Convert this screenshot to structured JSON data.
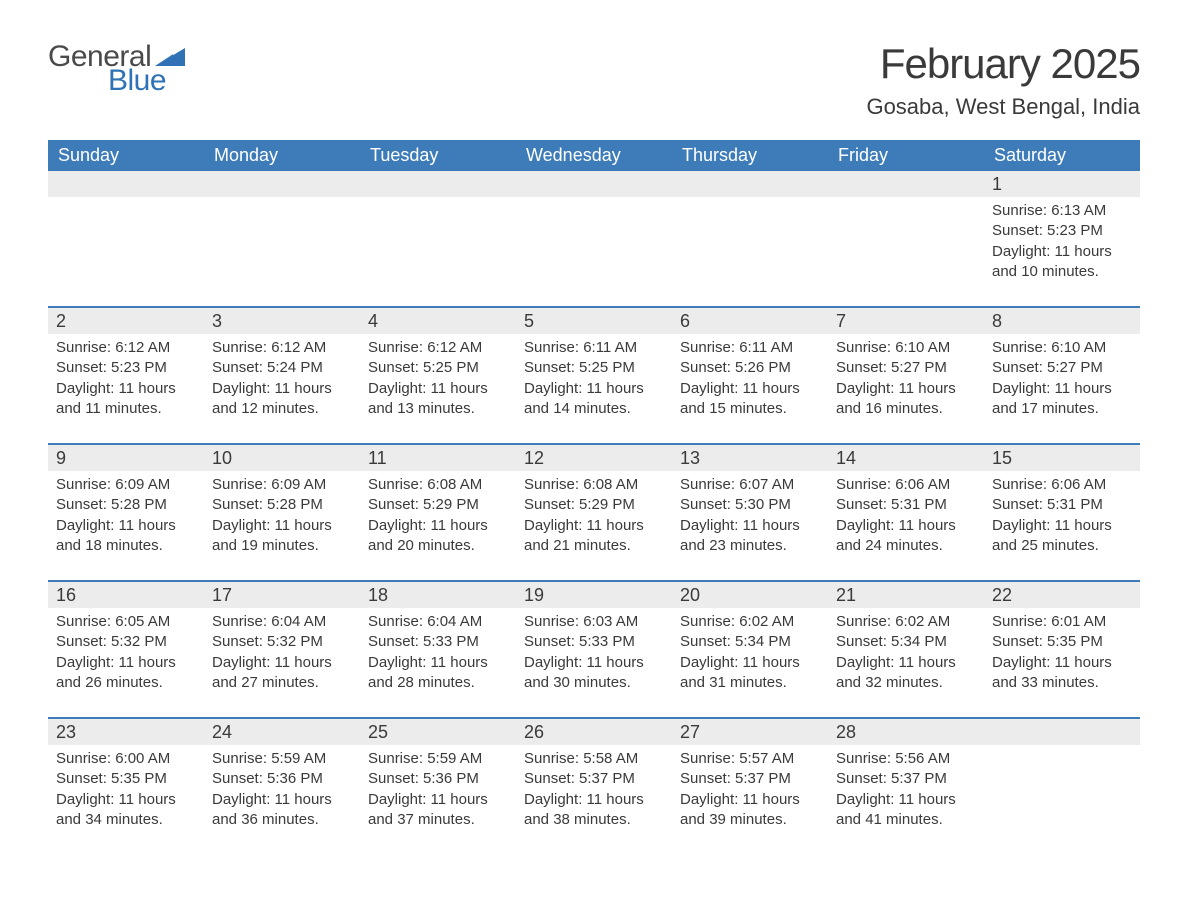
{
  "brand": {
    "general": "General",
    "blue": "Blue",
    "triangle_color": "#2f72b5"
  },
  "title": "February 2025",
  "location": "Gosaba, West Bengal, India",
  "colors": {
    "header_bg": "#3d7cb9",
    "header_text": "#ffffff",
    "daynum_bg": "#ececec",
    "row_divider": "#3d7cb9",
    "body_text": "#3a3a3a",
    "background": "#ffffff"
  },
  "weekdays": [
    "Sunday",
    "Monday",
    "Tuesday",
    "Wednesday",
    "Thursday",
    "Friday",
    "Saturday"
  ],
  "weeks": [
    [
      null,
      null,
      null,
      null,
      null,
      null,
      {
        "d": "1",
        "sr": "Sunrise: 6:13 AM",
        "ss": "Sunset: 5:23 PM",
        "dl": "Daylight: 11 hours and 10 minutes."
      }
    ],
    [
      {
        "d": "2",
        "sr": "Sunrise: 6:12 AM",
        "ss": "Sunset: 5:23 PM",
        "dl": "Daylight: 11 hours and 11 minutes."
      },
      {
        "d": "3",
        "sr": "Sunrise: 6:12 AM",
        "ss": "Sunset: 5:24 PM",
        "dl": "Daylight: 11 hours and 12 minutes."
      },
      {
        "d": "4",
        "sr": "Sunrise: 6:12 AM",
        "ss": "Sunset: 5:25 PM",
        "dl": "Daylight: 11 hours and 13 minutes."
      },
      {
        "d": "5",
        "sr": "Sunrise: 6:11 AM",
        "ss": "Sunset: 5:25 PM",
        "dl": "Daylight: 11 hours and 14 minutes."
      },
      {
        "d": "6",
        "sr": "Sunrise: 6:11 AM",
        "ss": "Sunset: 5:26 PM",
        "dl": "Daylight: 11 hours and 15 minutes."
      },
      {
        "d": "7",
        "sr": "Sunrise: 6:10 AM",
        "ss": "Sunset: 5:27 PM",
        "dl": "Daylight: 11 hours and 16 minutes."
      },
      {
        "d": "8",
        "sr": "Sunrise: 6:10 AM",
        "ss": "Sunset: 5:27 PM",
        "dl": "Daylight: 11 hours and 17 minutes."
      }
    ],
    [
      {
        "d": "9",
        "sr": "Sunrise: 6:09 AM",
        "ss": "Sunset: 5:28 PM",
        "dl": "Daylight: 11 hours and 18 minutes."
      },
      {
        "d": "10",
        "sr": "Sunrise: 6:09 AM",
        "ss": "Sunset: 5:28 PM",
        "dl": "Daylight: 11 hours and 19 minutes."
      },
      {
        "d": "11",
        "sr": "Sunrise: 6:08 AM",
        "ss": "Sunset: 5:29 PM",
        "dl": "Daylight: 11 hours and 20 minutes."
      },
      {
        "d": "12",
        "sr": "Sunrise: 6:08 AM",
        "ss": "Sunset: 5:29 PM",
        "dl": "Daylight: 11 hours and 21 minutes."
      },
      {
        "d": "13",
        "sr": "Sunrise: 6:07 AM",
        "ss": "Sunset: 5:30 PM",
        "dl": "Daylight: 11 hours and 23 minutes."
      },
      {
        "d": "14",
        "sr": "Sunrise: 6:06 AM",
        "ss": "Sunset: 5:31 PM",
        "dl": "Daylight: 11 hours and 24 minutes."
      },
      {
        "d": "15",
        "sr": "Sunrise: 6:06 AM",
        "ss": "Sunset: 5:31 PM",
        "dl": "Daylight: 11 hours and 25 minutes."
      }
    ],
    [
      {
        "d": "16",
        "sr": "Sunrise: 6:05 AM",
        "ss": "Sunset: 5:32 PM",
        "dl": "Daylight: 11 hours and 26 minutes."
      },
      {
        "d": "17",
        "sr": "Sunrise: 6:04 AM",
        "ss": "Sunset: 5:32 PM",
        "dl": "Daylight: 11 hours and 27 minutes."
      },
      {
        "d": "18",
        "sr": "Sunrise: 6:04 AM",
        "ss": "Sunset: 5:33 PM",
        "dl": "Daylight: 11 hours and 28 minutes."
      },
      {
        "d": "19",
        "sr": "Sunrise: 6:03 AM",
        "ss": "Sunset: 5:33 PM",
        "dl": "Daylight: 11 hours and 30 minutes."
      },
      {
        "d": "20",
        "sr": "Sunrise: 6:02 AM",
        "ss": "Sunset: 5:34 PM",
        "dl": "Daylight: 11 hours and 31 minutes."
      },
      {
        "d": "21",
        "sr": "Sunrise: 6:02 AM",
        "ss": "Sunset: 5:34 PM",
        "dl": "Daylight: 11 hours and 32 minutes."
      },
      {
        "d": "22",
        "sr": "Sunrise: 6:01 AM",
        "ss": "Sunset: 5:35 PM",
        "dl": "Daylight: 11 hours and 33 minutes."
      }
    ],
    [
      {
        "d": "23",
        "sr": "Sunrise: 6:00 AM",
        "ss": "Sunset: 5:35 PM",
        "dl": "Daylight: 11 hours and 34 minutes."
      },
      {
        "d": "24",
        "sr": "Sunrise: 5:59 AM",
        "ss": "Sunset: 5:36 PM",
        "dl": "Daylight: 11 hours and 36 minutes."
      },
      {
        "d": "25",
        "sr": "Sunrise: 5:59 AM",
        "ss": "Sunset: 5:36 PM",
        "dl": "Daylight: 11 hours and 37 minutes."
      },
      {
        "d": "26",
        "sr": "Sunrise: 5:58 AM",
        "ss": "Sunset: 5:37 PM",
        "dl": "Daylight: 11 hours and 38 minutes."
      },
      {
        "d": "27",
        "sr": "Sunrise: 5:57 AM",
        "ss": "Sunset: 5:37 PM",
        "dl": "Daylight: 11 hours and 39 minutes."
      },
      {
        "d": "28",
        "sr": "Sunrise: 5:56 AM",
        "ss": "Sunset: 5:37 PM",
        "dl": "Daylight: 11 hours and 41 minutes."
      },
      null
    ]
  ]
}
